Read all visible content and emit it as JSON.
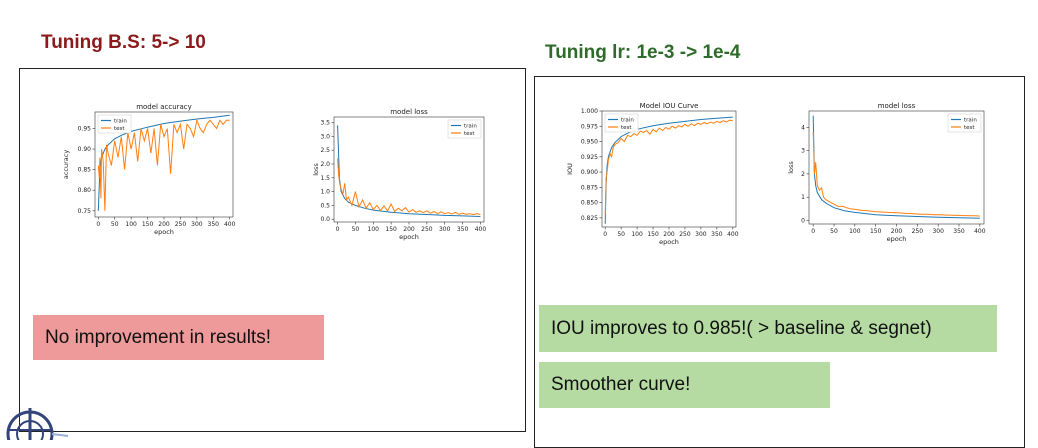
{
  "slide": {
    "heading_left": "Tuning B.S: 5-> 10",
    "heading_right": "Tuning lr: 1e-3 -> 1e-4",
    "note_left": "No improvement in results!",
    "note_right_1": "IOU improves to 0.985!( > baseline & segnet)",
    "note_right_2": "Smoother curve!"
  },
  "colors": {
    "train": "#1f77b4",
    "test": "#ff7f0e",
    "heading_left": "#8b1a1a",
    "heading_right": "#2f6b2a",
    "note_red": "#ee9a9a",
    "note_green": "#b5dba3"
  },
  "chart_data": [
    {
      "type": "line",
      "title": "model accuracy",
      "xlabel": "epoch",
      "ylabel": "accuracy",
      "xlim": [
        -10,
        410
      ],
      "ylim": [
        0.735,
        0.99
      ],
      "xticks": [
        0,
        50,
        100,
        150,
        200,
        250,
        300,
        350,
        400
      ],
      "yticks": [
        0.75,
        0.8,
        0.85,
        0.9,
        0.95
      ],
      "ytick_labels": [
        "0.75",
        "0.80",
        "0.85",
        "0.90",
        "0.95"
      ],
      "legend": {
        "position": "top-left",
        "entries": [
          "train",
          "test"
        ]
      },
      "grid": false,
      "series": [
        {
          "name": "train",
          "x": [
            0,
            5,
            10,
            20,
            30,
            50,
            75,
            100,
            150,
            200,
            250,
            300,
            350,
            400
          ],
          "values": [
            0.75,
            0.85,
            0.88,
            0.9,
            0.91,
            0.925,
            0.935,
            0.943,
            0.953,
            0.962,
            0.968,
            0.973,
            0.977,
            0.982
          ]
        },
        {
          "name": "test",
          "x": [
            0,
            3,
            5,
            8,
            10,
            15,
            20,
            25,
            30,
            40,
            50,
            60,
            70,
            80,
            90,
            100,
            110,
            120,
            130,
            140,
            150,
            160,
            170,
            180,
            190,
            200,
            210,
            220,
            230,
            240,
            250,
            260,
            270,
            280,
            290,
            300,
            310,
            320,
            330,
            340,
            350,
            360,
            370,
            380,
            390,
            400
          ],
          "values": [
            0.86,
            0.83,
            0.88,
            0.78,
            0.9,
            0.87,
            0.75,
            0.91,
            0.89,
            0.86,
            0.92,
            0.88,
            0.93,
            0.85,
            0.94,
            0.9,
            0.94,
            0.87,
            0.95,
            0.92,
            0.95,
            0.89,
            0.95,
            0.86,
            0.96,
            0.93,
            0.95,
            0.84,
            0.96,
            0.94,
            0.96,
            0.9,
            0.96,
            0.95,
            0.93,
            0.97,
            0.95,
            0.94,
            0.96,
            0.97,
            0.96,
            0.95,
            0.97,
            0.96,
            0.97,
            0.97
          ]
        }
      ]
    },
    {
      "type": "line",
      "title": "model loss",
      "xlabel": "epoch",
      "ylabel": "loss",
      "xlim": [
        -10,
        410
      ],
      "ylim": [
        -0.1,
        3.7
      ],
      "xticks": [
        0,
        50,
        100,
        150,
        200,
        250,
        300,
        350,
        400
      ],
      "yticks": [
        0,
        0.5,
        1,
        1.5,
        2,
        2.5,
        3,
        3.5
      ],
      "ytick_labels": [
        "0.0",
        "0.5",
        "1.0",
        "1.5",
        "2.0",
        "2.5",
        "3.0",
        "3.5"
      ],
      "legend": {
        "position": "top-right",
        "entries": [
          "train",
          "test"
        ]
      },
      "grid": false,
      "series": [
        {
          "name": "train",
          "x": [
            0,
            5,
            10,
            20,
            30,
            50,
            75,
            100,
            150,
            200,
            250,
            300,
            350,
            400
          ],
          "values": [
            3.4,
            1.5,
            1.0,
            0.75,
            0.62,
            0.5,
            0.4,
            0.33,
            0.25,
            0.2,
            0.17,
            0.14,
            0.12,
            0.1
          ]
        },
        {
          "name": "test",
          "x": [
            0,
            3,
            6,
            10,
            15,
            20,
            25,
            30,
            40,
            50,
            60,
            70,
            80,
            90,
            100,
            110,
            120,
            130,
            140,
            150,
            160,
            170,
            180,
            190,
            200,
            210,
            220,
            230,
            240,
            250,
            260,
            270,
            280,
            290,
            300,
            310,
            320,
            330,
            340,
            350,
            360,
            370,
            380,
            390,
            400
          ],
          "values": [
            2.2,
            1.6,
            1.3,
            1.1,
            0.9,
            1.3,
            0.7,
            0.8,
            0.5,
            1.0,
            0.45,
            0.7,
            0.4,
            0.6,
            0.35,
            0.5,
            0.32,
            0.48,
            0.3,
            0.55,
            0.28,
            0.4,
            0.3,
            0.42,
            0.26,
            0.35,
            0.25,
            0.3,
            0.24,
            0.3,
            0.22,
            0.28,
            0.2,
            0.27,
            0.2,
            0.24,
            0.19,
            0.25,
            0.18,
            0.22,
            0.18,
            0.2,
            0.17,
            0.2,
            0.17
          ]
        }
      ]
    },
    {
      "type": "line",
      "title": "Model IOU Curve",
      "xlabel": "epoch",
      "ylabel": "IOU",
      "xlim": [
        -10,
        410
      ],
      "ylim": [
        0.81,
        1.0
      ],
      "xticks": [
        0,
        50,
        100,
        150,
        200,
        250,
        300,
        350,
        400
      ],
      "yticks": [
        0.825,
        0.85,
        0.875,
        0.9,
        0.925,
        0.95,
        0.975,
        1.0
      ],
      "ytick_labels": [
        "0.825",
        "0.850",
        "0.875",
        "0.900",
        "0.925",
        "0.950",
        "0.975",
        "1.000"
      ],
      "legend": {
        "position": "top-left",
        "entries": [
          "train",
          "test"
        ]
      },
      "grid": false,
      "series": [
        {
          "name": "train",
          "x": [
            0,
            3,
            6,
            10,
            20,
            30,
            50,
            75,
            100,
            150,
            200,
            250,
            300,
            350,
            400
          ],
          "values": [
            0.815,
            0.88,
            0.91,
            0.925,
            0.94,
            0.948,
            0.958,
            0.965,
            0.97,
            0.976,
            0.98,
            0.983,
            0.986,
            0.988,
            0.99
          ]
        },
        {
          "name": "test",
          "x": [
            0,
            3,
            6,
            10,
            15,
            20,
            25,
            30,
            40,
            50,
            60,
            70,
            80,
            90,
            100,
            110,
            120,
            130,
            140,
            150,
            160,
            170,
            180,
            190,
            200,
            210,
            220,
            230,
            240,
            250,
            260,
            270,
            280,
            290,
            300,
            310,
            320,
            330,
            340,
            350,
            360,
            370,
            380,
            390,
            400
          ],
          "values": [
            0.83,
            0.89,
            0.9,
            0.92,
            0.93,
            0.925,
            0.94,
            0.945,
            0.948,
            0.955,
            0.95,
            0.96,
            0.958,
            0.963,
            0.96,
            0.967,
            0.965,
            0.968,
            0.962,
            0.97,
            0.966,
            0.972,
            0.968,
            0.973,
            0.97,
            0.975,
            0.972,
            0.976,
            0.974,
            0.978,
            0.975,
            0.979,
            0.976,
            0.98,
            0.978,
            0.981,
            0.979,
            0.982,
            0.98,
            0.983,
            0.981,
            0.984,
            0.982,
            0.985,
            0.984
          ]
        }
      ]
    },
    {
      "type": "line",
      "title": "model loss",
      "xlabel": "epoch",
      "ylabel": "loss",
      "xlim": [
        -10,
        410
      ],
      "ylim": [
        -0.15,
        4.7
      ],
      "xticks": [
        0,
        50,
        100,
        150,
        200,
        250,
        300,
        350,
        400
      ],
      "yticks": [
        0,
        1,
        2,
        3,
        4
      ],
      "ytick_labels": [
        "0",
        "1",
        "2",
        "3",
        "4"
      ],
      "legend": {
        "position": "top-right",
        "entries": [
          "train",
          "test"
        ]
      },
      "grid": false,
      "series": [
        {
          "name": "train",
          "x": [
            0,
            3,
            6,
            10,
            20,
            30,
            50,
            75,
            100,
            150,
            200,
            250,
            300,
            350,
            400
          ],
          "values": [
            4.5,
            2.0,
            1.5,
            1.2,
            0.9,
            0.75,
            0.55,
            0.42,
            0.35,
            0.25,
            0.2,
            0.17,
            0.14,
            0.12,
            0.1
          ]
        },
        {
          "name": "test",
          "x": [
            0,
            3,
            6,
            10,
            15,
            20,
            25,
            30,
            40,
            50,
            60,
            70,
            80,
            90,
            100,
            110,
            120,
            130,
            140,
            150,
            160,
            170,
            180,
            190,
            200,
            210,
            220,
            230,
            240,
            250,
            260,
            270,
            280,
            290,
            300,
            310,
            320,
            330,
            340,
            350,
            360,
            370,
            380,
            390,
            400
          ],
          "values": [
            3.8,
            2.0,
            2.5,
            1.5,
            1.3,
            1.4,
            1.0,
            0.9,
            0.8,
            0.7,
            0.6,
            0.62,
            0.55,
            0.5,
            0.48,
            0.45,
            0.43,
            0.42,
            0.4,
            0.38,
            0.37,
            0.36,
            0.35,
            0.34,
            0.33,
            0.32,
            0.31,
            0.3,
            0.29,
            0.28,
            0.27,
            0.27,
            0.26,
            0.25,
            0.25,
            0.24,
            0.23,
            0.23,
            0.22,
            0.22,
            0.21,
            0.21,
            0.2,
            0.2,
            0.19
          ]
        }
      ]
    }
  ]
}
